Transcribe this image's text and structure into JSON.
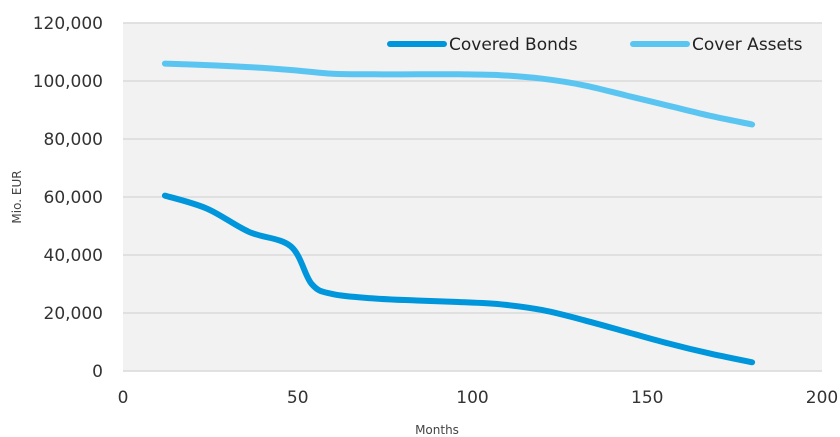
{
  "chart_data": {
    "type": "line",
    "title": "",
    "xlabel": "Months",
    "ylabel": "Mio. EUR",
    "xlim": [
      0,
      200
    ],
    "ylim": [
      0,
      120000
    ],
    "x_ticks": [
      "0",
      "50",
      "100",
      "150",
      "200"
    ],
    "y_ticks": [
      "0",
      "20,000",
      "40,000",
      "60,000",
      "80,000",
      "100,000",
      "120,000"
    ],
    "grid": true,
    "legend_position": "top-right",
    "series": [
      {
        "name": "Covered Bonds",
        "color": "#0096db",
        "x": [
          12,
          24,
          36,
          48,
          54,
          60,
          72,
          84,
          96,
          108,
          120,
          132,
          144,
          156,
          168,
          180
        ],
        "y": [
          60500,
          56000,
          48000,
          43000,
          30000,
          26500,
          25000,
          24300,
          23800,
          23000,
          21000,
          17500,
          13500,
          9500,
          6000,
          3000
        ]
      },
      {
        "name": "Cover Assets",
        "color": "#5bc5f2",
        "x": [
          12,
          24,
          36,
          48,
          60,
          72,
          84,
          96,
          108,
          120,
          132,
          144,
          156,
          168,
          180
        ],
        "y": [
          106000,
          105500,
          104800,
          103800,
          102500,
          102300,
          102300,
          102300,
          102000,
          100800,
          98500,
          95000,
          91500,
          88000,
          85000
        ]
      }
    ]
  }
}
